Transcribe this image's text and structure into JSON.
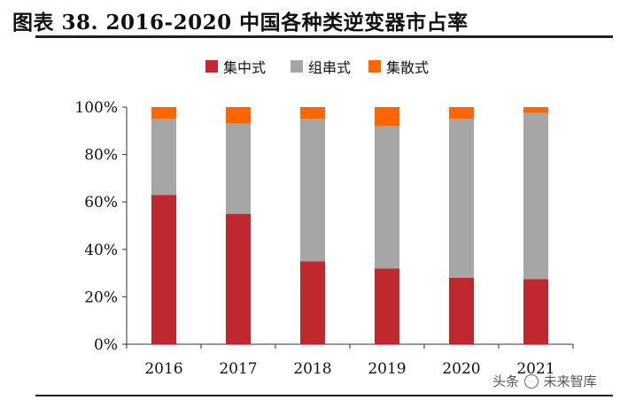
{
  "header": {
    "title": "图表 38. 2016-2020 中国各种类逆变器市占率"
  },
  "watermark": {
    "text_a": "头条",
    "text_b": "未来智库"
  },
  "chart_data": {
    "type": "bar",
    "stacked": true,
    "title": "图表 38. 2016-2020 中国各种类逆变器市占率",
    "categories": [
      "2016",
      "2017",
      "2018",
      "2019",
      "2020",
      "2021"
    ],
    "series": [
      {
        "name": "集中式",
        "color": "#c0282f",
        "values": [
          63,
          55,
          35,
          32,
          28,
          27.5
        ]
      },
      {
        "name": "组串式",
        "color": "#a6a6a6",
        "values": [
          32,
          38,
          60,
          60,
          67,
          70
        ]
      },
      {
        "name": "集散式",
        "color": "#ff6600",
        "values": [
          5,
          7,
          5,
          8,
          5,
          2.5
        ]
      }
    ],
    "ylim": [
      0,
      100
    ],
    "yticks": [
      "0%",
      "20%",
      "40%",
      "60%",
      "80%",
      "100%"
    ],
    "xlabel": "",
    "ylabel": "",
    "legend_position": "top-center"
  }
}
